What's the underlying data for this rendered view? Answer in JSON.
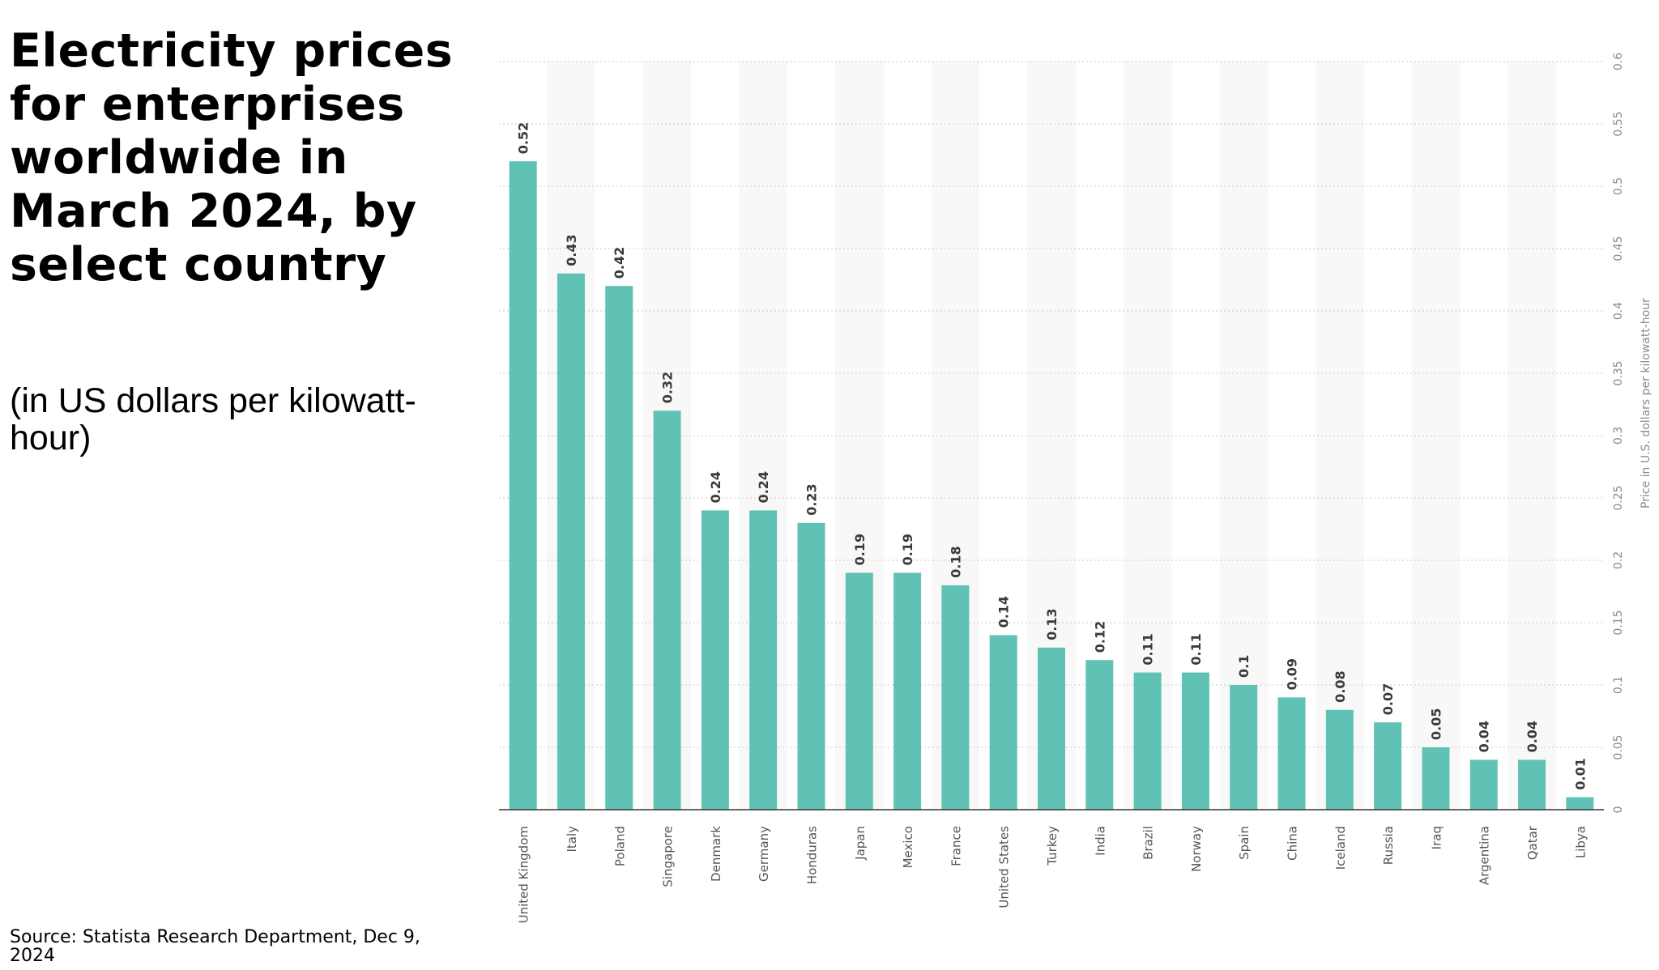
{
  "header": {
    "title": "Electricity prices for enterprises worldwide in March 2024, by select country",
    "subtitle": "(in US dollars per kilowatt-hour)"
  },
  "footer": {
    "source": "Source: Statista Research Department, Dec 9, 2024"
  },
  "colors": {
    "bar": "#5fc2b4",
    "band": "#f8f8f8",
    "grid": "#c8c8c8",
    "axis": "#333333"
  },
  "chart_data": {
    "type": "bar",
    "categories": [
      "United Kingdom",
      "Italy",
      "Poland",
      "Singapore",
      "Denmark",
      "Germany",
      "Honduras",
      "Japan",
      "Mexico",
      "France",
      "United States",
      "Turkey",
      "India",
      "Brazil",
      "Norway",
      "Spain",
      "China",
      "Iceland",
      "Russia",
      "Iraq",
      "Argentina",
      "Qatar",
      "Libya"
    ],
    "values": [
      0.52,
      0.43,
      0.42,
      0.32,
      0.24,
      0.24,
      0.23,
      0.19,
      0.19,
      0.18,
      0.14,
      0.13,
      0.12,
      0.11,
      0.11,
      0.1,
      0.09,
      0.08,
      0.07,
      0.05,
      0.04,
      0.04,
      0.01
    ],
    "value_labels": [
      "0.52",
      "0.43",
      "0.42",
      "0.32",
      "0.24",
      "0.24",
      "0.23",
      "0.19",
      "0.19",
      "0.18",
      "0.14",
      "0.13",
      "0.12",
      "0.11",
      "0.11",
      "0.1",
      "0.09",
      "0.08",
      "0.07",
      "0.05",
      "0.04",
      "0.04",
      "0.01"
    ],
    "ylabel": "Price in U.S. dollars per kilowatt-hour",
    "ylim": [
      0,
      0.6
    ],
    "y_ticks": [
      "0",
      "0.05",
      "0.1",
      "0.15",
      "0.2",
      "0.25",
      "0.3",
      "0.35",
      "0.4",
      "0.45",
      "0.5",
      "0.55",
      "0.6"
    ],
    "y_axis_side": "right",
    "grid": true
  }
}
